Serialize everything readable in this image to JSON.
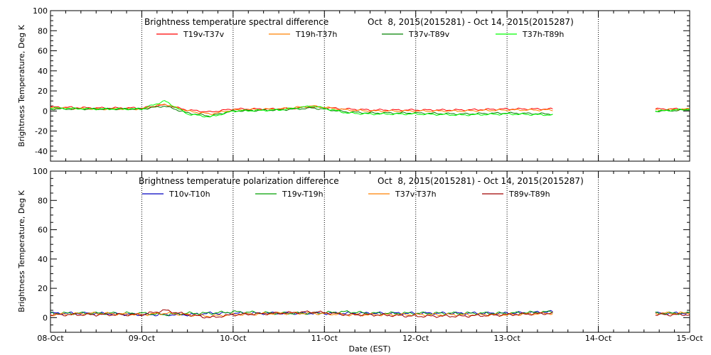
{
  "xaxis": {
    "label": "Date (EST)",
    "ticks": [
      "08-Oct",
      "09-Oct",
      "10-Oct",
      "11-Oct",
      "12-Oct",
      "13-Oct",
      "14-Oct",
      "15-Oct"
    ],
    "range_days": [
      0,
      7
    ]
  },
  "chart_data": [
    {
      "type": "line",
      "title": "Brightness temperature spectral difference",
      "subtitle": "Oct  8, 2015(2015281) - Oct 14, 2015(2015287)",
      "ylabel": "Brightness Temperature, Deg K",
      "ylim": [
        -50,
        100
      ],
      "yticks": [
        -40,
        -20,
        0,
        20,
        40,
        60,
        80,
        100
      ],
      "ytick_labels": [
        "-40",
        "-20",
        "0",
        "20",
        "40",
        "60",
        "80",
        "100"
      ],
      "grid": "vertical dotted lines at each day",
      "legend": "top",
      "series": [
        {
          "name": "T19v-T37v",
          "color": "#ff0000",
          "x": [
            "2015-10-08 00:00",
            "2015-10-08 12:00",
            "2015-10-09 00:00",
            "2015-10-09 06:00",
            "2015-10-09 12:00",
            "2015-10-09 18:00",
            "2015-10-10 00:00",
            "2015-10-10 12:00",
            "2015-10-10 21:00",
            "2015-10-11 06:00",
            "2015-10-11 12:00",
            "2015-10-12 00:00",
            "2015-10-12 12:00",
            "2015-10-13 00:00",
            "2015-10-13 12:00",
            "2015-10-14 16:00",
            "2015-10-15 00:00"
          ],
          "y": [
            4,
            3,
            3,
            6,
            1,
            -1,
            2,
            2,
            4,
            2,
            1,
            1,
            1,
            2,
            2,
            2,
            2
          ]
        },
        {
          "name": "T19h-T37h",
          "color": "#ff8000",
          "x": [
            "2015-10-08 00:00",
            "2015-10-08 12:00",
            "2015-10-09 00:00",
            "2015-10-09 06:00",
            "2015-10-09 12:00",
            "2015-10-09 18:00",
            "2015-10-10 00:00",
            "2015-10-10 12:00",
            "2015-10-10 21:00",
            "2015-10-11 06:00",
            "2015-10-11 12:00",
            "2015-10-12 00:00",
            "2015-10-12 12:00",
            "2015-10-13 00:00",
            "2015-10-13 12:00",
            "2015-10-14 16:00",
            "2015-10-15 00:00"
          ],
          "y": [
            3,
            2,
            2,
            7,
            0,
            -3,
            1,
            2,
            5,
            1,
            0,
            0,
            0,
            1,
            1,
            1,
            2
          ]
        },
        {
          "name": "T37v-T89v",
          "color": "#008000",
          "x": [
            "2015-10-08 00:00",
            "2015-10-08 12:00",
            "2015-10-09 00:00",
            "2015-10-09 06:00",
            "2015-10-09 12:00",
            "2015-10-09 18:00",
            "2015-10-10 00:00",
            "2015-10-10 12:00",
            "2015-10-10 21:00",
            "2015-10-11 06:00",
            "2015-10-11 12:00",
            "2015-10-12 00:00",
            "2015-10-12 12:00",
            "2015-10-13 00:00",
            "2015-10-13 12:00",
            "2015-10-14 16:00",
            "2015-10-15 00:00"
          ],
          "y": [
            2,
            2,
            2,
            5,
            -2,
            -5,
            0,
            1,
            3,
            -1,
            -2,
            -2,
            -3,
            -2,
            -3,
            0,
            1
          ]
        },
        {
          "name": "T37h-T89h",
          "color": "#00ff00",
          "x": [
            "2015-10-08 00:00",
            "2015-10-08 12:00",
            "2015-10-09 00:00",
            "2015-10-09 06:00",
            "2015-10-09 12:00",
            "2015-10-09 18:00",
            "2015-10-10 00:00",
            "2015-10-10 12:00",
            "2015-10-10 21:00",
            "2015-10-11 06:00",
            "2015-10-11 12:00",
            "2015-10-12 00:00",
            "2015-10-12 12:00",
            "2015-10-13 00:00",
            "2015-10-13 12:00",
            "2015-10-14 16:00",
            "2015-10-15 00:00"
          ],
          "y": [
            3,
            2,
            2,
            10,
            -3,
            -6,
            0,
            1,
            5,
            -2,
            -3,
            -3,
            -4,
            -3,
            -4,
            0,
            2
          ]
        }
      ]
    },
    {
      "type": "line",
      "title": "Brightness temperature polarization difference",
      "subtitle": "Oct  8, 2015(2015281) - Oct 14, 2015(2015287)",
      "ylabel": "Brightness Temperature, Deg K",
      "ylim": [
        -10,
        100
      ],
      "yticks": [
        0,
        20,
        40,
        60,
        80,
        100
      ],
      "ytick_labels": [
        "0",
        "20",
        "40",
        "60",
        "80",
        "100"
      ],
      "grid": "vertical dotted lines at each day",
      "legend": "top",
      "series": [
        {
          "name": "T10v-T10h",
          "color": "#0000c0",
          "x": [
            "2015-10-08 00:00",
            "2015-10-08 12:00",
            "2015-10-09 00:00",
            "2015-10-09 06:00",
            "2015-10-09 12:00",
            "2015-10-09 18:00",
            "2015-10-10 00:00",
            "2015-10-10 12:00",
            "2015-10-10 21:00",
            "2015-10-11 06:00",
            "2015-10-11 12:00",
            "2015-10-12 00:00",
            "2015-10-12 12:00",
            "2015-10-13 00:00",
            "2015-10-13 12:00",
            "2015-10-14 16:00",
            "2015-10-15 00:00"
          ],
          "y": [
            3,
            3,
            2,
            2,
            2,
            3,
            3,
            3,
            3,
            3,
            3,
            3,
            3,
            3,
            4,
            3,
            3
          ]
        },
        {
          "name": "T19v-T19h",
          "color": "#00a000",
          "x": [
            "2015-10-08 00:00",
            "2015-10-08 12:00",
            "2015-10-09 00:00",
            "2015-10-09 06:00",
            "2015-10-09 12:00",
            "2015-10-09 18:00",
            "2015-10-10 00:00",
            "2015-10-10 12:00",
            "2015-10-10 21:00",
            "2015-10-11 06:00",
            "2015-10-11 12:00",
            "2015-10-12 00:00",
            "2015-10-12 12:00",
            "2015-10-13 00:00",
            "2015-10-13 12:00",
            "2015-10-14 16:00",
            "2015-10-15 00:00"
          ],
          "y": [
            3,
            3,
            3,
            2,
            3,
            3,
            4,
            3,
            3,
            4,
            3,
            3,
            3,
            3,
            4,
            3,
            3
          ]
        },
        {
          "name": "T37v-T37h",
          "color": "#ff8000",
          "x": [
            "2015-10-08 00:00",
            "2015-10-08 12:00",
            "2015-10-09 00:00",
            "2015-10-09 06:00",
            "2015-10-09 12:00",
            "2015-10-09 18:00",
            "2015-10-10 00:00",
            "2015-10-10 12:00",
            "2015-10-10 21:00",
            "2015-10-11 06:00",
            "2015-10-11 12:00",
            "2015-10-12 00:00",
            "2015-10-12 12:00",
            "2015-10-13 00:00",
            "2015-10-13 12:00",
            "2015-10-14 16:00",
            "2015-10-15 00:00"
          ],
          "y": [
            2,
            3,
            2,
            3,
            2,
            1,
            2,
            3,
            3,
            2,
            2,
            2,
            2,
            2,
            3,
            3,
            3
          ]
        },
        {
          "name": "T89v-T89h",
          "color": "#a00000",
          "x": [
            "2015-10-08 00:00",
            "2015-10-08 12:00",
            "2015-10-09 00:00",
            "2015-10-09 06:00",
            "2015-10-09 12:00",
            "2015-10-09 18:00",
            "2015-10-10 00:00",
            "2015-10-10 12:00",
            "2015-10-10 21:00",
            "2015-10-11 06:00",
            "2015-10-11 12:00",
            "2015-10-12 00:00",
            "2015-10-12 12:00",
            "2015-10-13 00:00",
            "2015-10-13 12:00",
            "2015-10-14 16:00",
            "2015-10-15 00:00"
          ],
          "y": [
            2,
            2,
            2,
            5,
            2,
            0,
            2,
            3,
            4,
            2,
            2,
            1,
            1,
            2,
            3,
            2,
            2
          ]
        }
      ]
    }
  ]
}
